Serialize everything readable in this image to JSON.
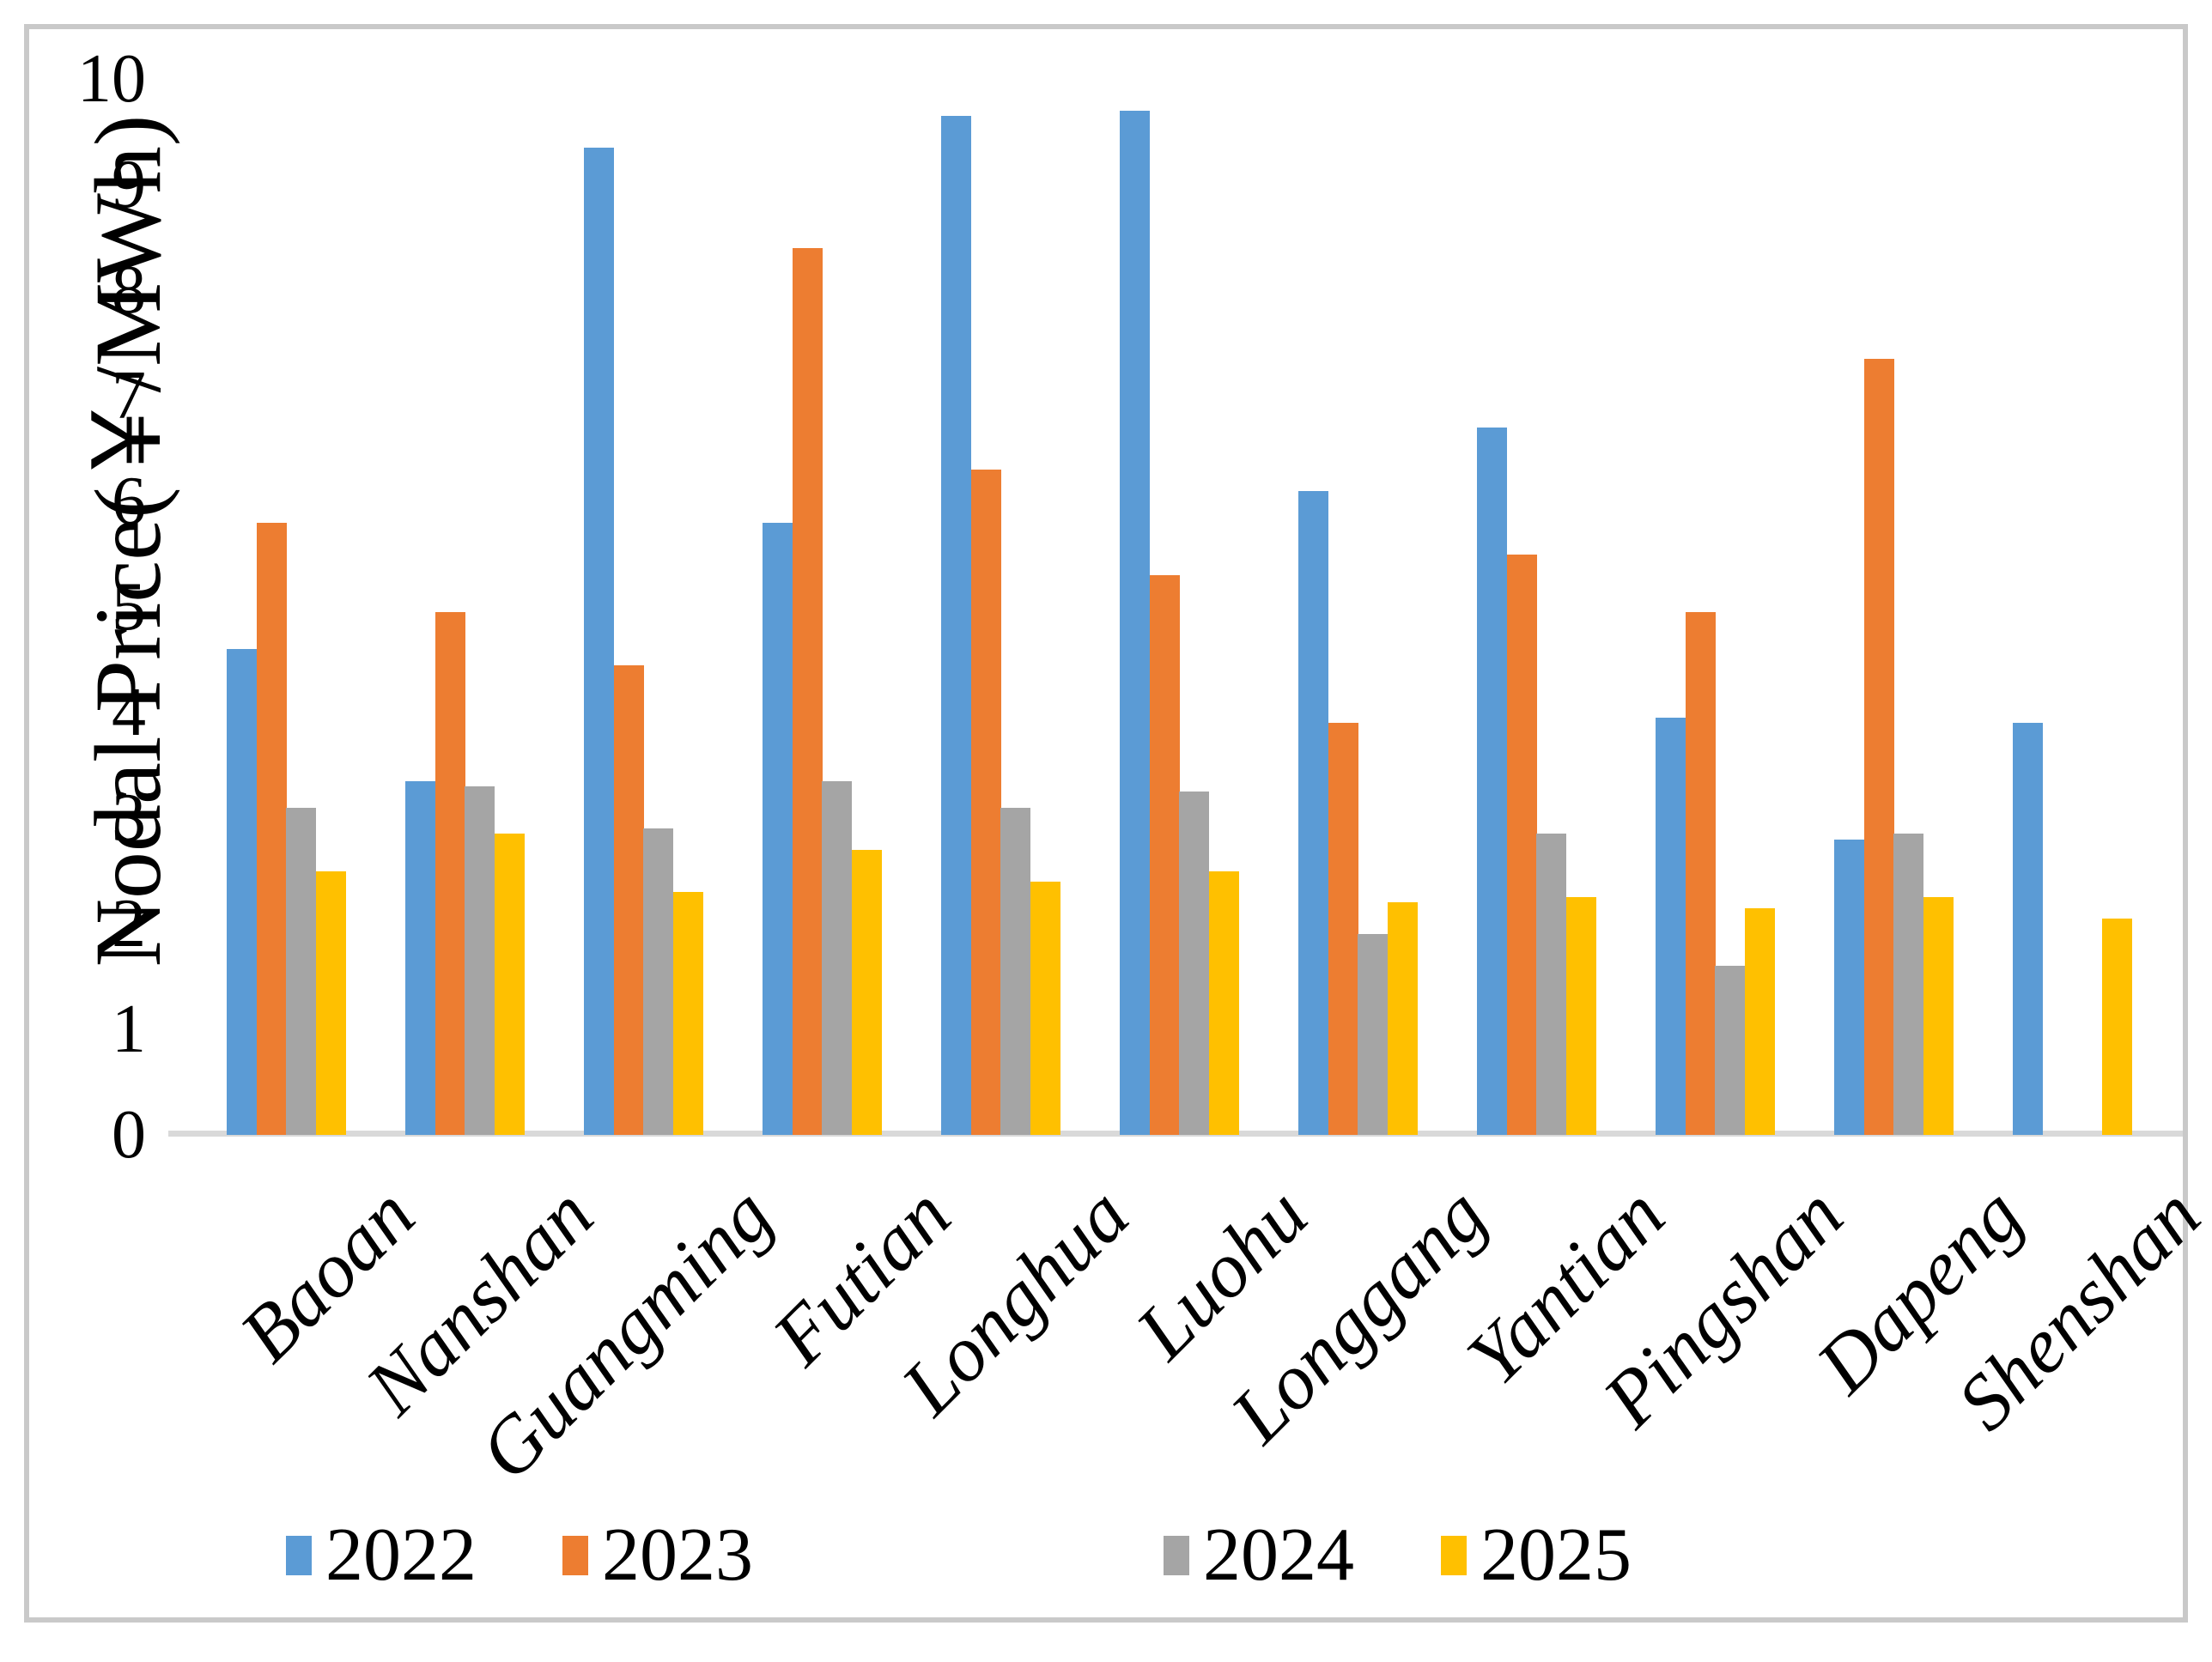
{
  "figure": {
    "background": "#ffffff",
    "border_color": "#c9c9c9",
    "axis_line_color": "#d9d9d9"
  },
  "chart_data": {
    "type": "bar",
    "title": "",
    "xlabel": "",
    "ylabel": "Nodal Price(￥/MWh)",
    "ylim": [
      0,
      10
    ],
    "ytick_step": 1,
    "yticks": [
      0,
      1,
      2,
      3,
      4,
      5,
      6,
      7,
      8,
      9,
      10
    ],
    "grid": false,
    "legend_position": "bottom",
    "categories": [
      "Baoan",
      "Nanshan",
      "Guangming",
      "Futian",
      "Longhua",
      "Luohu",
      "Longgang",
      "Yantian",
      "Pingshan",
      "Dapeng",
      "Shenshan"
    ],
    "series": [
      {
        "name": "2022",
        "color": "#5B9BD5",
        "values": [
          4.6,
          3.35,
          9.35,
          5.8,
          9.65,
          9.7,
          6.1,
          6.7,
          3.95,
          2.8,
          3.9
        ]
      },
      {
        "name": "2023",
        "color": "#ED7D31",
        "values": [
          5.8,
          4.95,
          4.45,
          8.4,
          6.3,
          5.3,
          3.9,
          5.5,
          4.95,
          7.35,
          0
        ]
      },
      {
        "name": "2024",
        "color": "#A5A5A5",
        "values": [
          3.1,
          3.3,
          2.9,
          3.35,
          3.1,
          3.25,
          1.9,
          2.85,
          1.6,
          2.85,
          0
        ]
      },
      {
        "name": "2025",
        "color": "#FFC000",
        "values": [
          2.5,
          2.85,
          2.3,
          2.7,
          2.4,
          2.5,
          2.2,
          2.25,
          2.15,
          2.25,
          2.05
        ]
      }
    ]
  },
  "legend_x_positions": [
    333,
    655,
    1355,
    1678
  ]
}
